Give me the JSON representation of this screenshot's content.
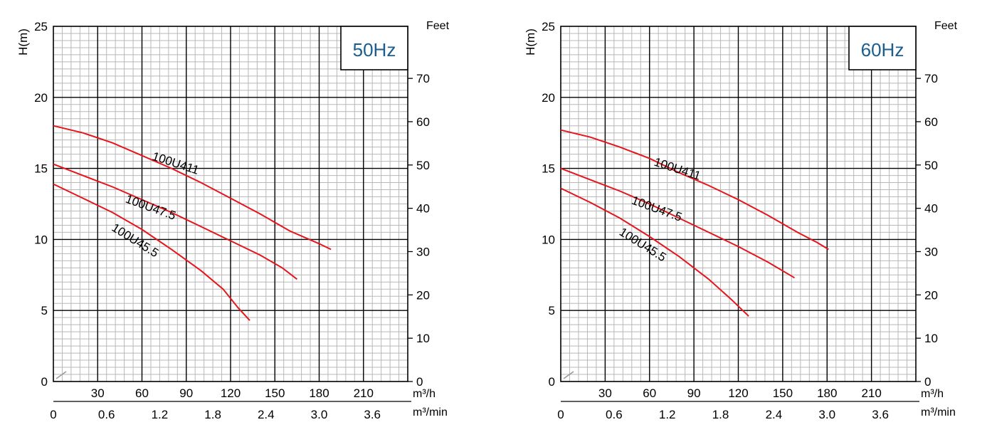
{
  "chart_data": [
    {
      "type": "line",
      "freq_label": "50Hz",
      "ylabel_left": "H(m)",
      "ylabel_right": "Feet",
      "xunit_top": "m³/h",
      "xunit_bottom": "m³/min",
      "yticks_left": [
        "0",
        "5",
        "10",
        "15",
        "20",
        "25"
      ],
      "yticks_right": [
        "0",
        "10",
        "20",
        "30",
        "40",
        "50",
        "60",
        "70"
      ],
      "xticks_top": [
        "30",
        "60",
        "90",
        "120",
        "150",
        "180",
        "210"
      ],
      "xticks_bottom": [
        "0",
        "0.6",
        "1.2",
        "1.8",
        "2.4",
        "3.0",
        "3.6"
      ],
      "xlim_m3h": [
        0,
        240
      ],
      "ylim_m": [
        0,
        25
      ],
      "curve_color": "#e8141b",
      "series": [
        {
          "name": "100U411",
          "label_at": [
            82,
            15.1
          ],
          "label_angle": 18,
          "points": [
            [
              0,
              18.0
            ],
            [
              20,
              17.5
            ],
            [
              40,
              16.8
            ],
            [
              60,
              15.9
            ],
            [
              80,
              15.0
            ],
            [
              100,
              14.0
            ],
            [
              120,
              12.9
            ],
            [
              140,
              11.8
            ],
            [
              160,
              10.6
            ],
            [
              180,
              9.7
            ],
            [
              188,
              9.3
            ]
          ]
        },
        {
          "name": "100U47.5",
          "label_at": [
            65,
            12.0
          ],
          "label_angle": 20,
          "points": [
            [
              0,
              15.3
            ],
            [
              20,
              14.5
            ],
            [
              40,
              13.7
            ],
            [
              60,
              12.8
            ],
            [
              80,
              11.9
            ],
            [
              100,
              10.9
            ],
            [
              120,
              9.9
            ],
            [
              140,
              8.9
            ],
            [
              155,
              8.0
            ],
            [
              165,
              7.2
            ]
          ]
        },
        {
          "name": "100U45.5",
          "label_at": [
            54,
            9.7
          ],
          "label_angle": 32,
          "points": [
            [
              0,
              13.9
            ],
            [
              20,
              12.9
            ],
            [
              40,
              11.9
            ],
            [
              60,
              10.7
            ],
            [
              80,
              9.3
            ],
            [
              100,
              7.8
            ],
            [
              115,
              6.5
            ],
            [
              125,
              5.2
            ],
            [
              133,
              4.3
            ]
          ]
        }
      ]
    },
    {
      "type": "line",
      "freq_label": "60Hz",
      "ylabel_left": "H(m)",
      "ylabel_right": "Feet",
      "xunit_top": "m³/h",
      "xunit_bottom": "m³/min",
      "yticks_left": [
        "0",
        "5",
        "10",
        "15",
        "20",
        "25"
      ],
      "yticks_right": [
        "0",
        "10",
        "20",
        "30",
        "40",
        "50",
        "60",
        "70"
      ],
      "xticks_top": [
        "30",
        "60",
        "90",
        "120",
        "150",
        "180",
        "210"
      ],
      "xticks_bottom": [
        "0",
        "0.6",
        "1.2",
        "1.8",
        "2.4",
        "3.0",
        "3.6"
      ],
      "xlim_m3h": [
        0,
        240
      ],
      "ylim_m": [
        0,
        25
      ],
      "curve_color": "#e8141b",
      "series": [
        {
          "name": "100U411",
          "label_at": [
            78,
            14.7
          ],
          "label_angle": 18,
          "points": [
            [
              0,
              17.7
            ],
            [
              20,
              17.2
            ],
            [
              40,
              16.5
            ],
            [
              60,
              15.7
            ],
            [
              80,
              14.7
            ],
            [
              100,
              13.8
            ],
            [
              120,
              12.8
            ],
            [
              140,
              11.7
            ],
            [
              160,
              10.5
            ],
            [
              173,
              9.8
            ],
            [
              181,
              9.3
            ]
          ]
        },
        {
          "name": "100U47.5",
          "label_at": [
            64,
            11.9
          ],
          "label_angle": 20,
          "points": [
            [
              0,
              15.0
            ],
            [
              20,
              14.2
            ],
            [
              40,
              13.4
            ],
            [
              60,
              12.5
            ],
            [
              80,
              11.5
            ],
            [
              100,
              10.5
            ],
            [
              120,
              9.5
            ],
            [
              140,
              8.4
            ],
            [
              158,
              7.3
            ]
          ]
        },
        {
          "name": "100U45.5",
          "label_at": [
            54,
            9.4
          ],
          "label_angle": 32,
          "points": [
            [
              0,
              13.6
            ],
            [
              20,
              12.6
            ],
            [
              40,
              11.5
            ],
            [
              60,
              10.2
            ],
            [
              80,
              8.8
            ],
            [
              100,
              7.2
            ],
            [
              115,
              5.8
            ],
            [
              127,
              4.6
            ]
          ]
        }
      ]
    }
  ]
}
